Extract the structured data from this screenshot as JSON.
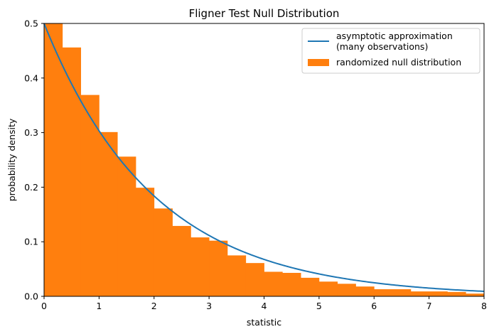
{
  "chart_data": {
    "type": "bar",
    "title": "Fligner Test Null Distribution",
    "xlabel": "statistic",
    "ylabel": "probability density",
    "xlim": [
      0,
      8
    ],
    "ylim": [
      0,
      0.5
    ],
    "x_ticks": [
      "0",
      "1",
      "2",
      "3",
      "4",
      "5",
      "6",
      "7",
      "8"
    ],
    "y_ticks": [
      "0.0",
      "0.1",
      "0.2",
      "0.3",
      "0.4",
      "0.5"
    ],
    "grid": false,
    "legend_position": "top-right",
    "series": [
      {
        "name": "asymptotic approximation\n(many observations)",
        "type": "line",
        "color": "#1f77b4",
        "function": "0.5 * exp(-x / 2)",
        "x_start": 0,
        "x_end": 8
      },
      {
        "name": "randomized null distribution",
        "type": "histogram",
        "color": "#ff7f0e",
        "bin_edges": [
          0,
          0.333,
          0.667,
          1.0,
          1.333,
          1.667,
          2.0,
          2.333,
          2.667,
          3.0,
          3.333,
          3.667,
          4.0,
          4.333,
          4.667,
          5.0,
          5.333,
          5.667,
          6.0,
          6.333,
          6.667,
          7.0,
          7.333,
          7.667,
          8.0
        ],
        "values": [
          0.5,
          0.456,
          0.369,
          0.301,
          0.256,
          0.199,
          0.161,
          0.129,
          0.108,
          0.102,
          0.075,
          0.061,
          0.045,
          0.043,
          0.034,
          0.027,
          0.023,
          0.018,
          0.013,
          0.013,
          0.009,
          0.009,
          0.008,
          0.005
        ]
      }
    ]
  }
}
